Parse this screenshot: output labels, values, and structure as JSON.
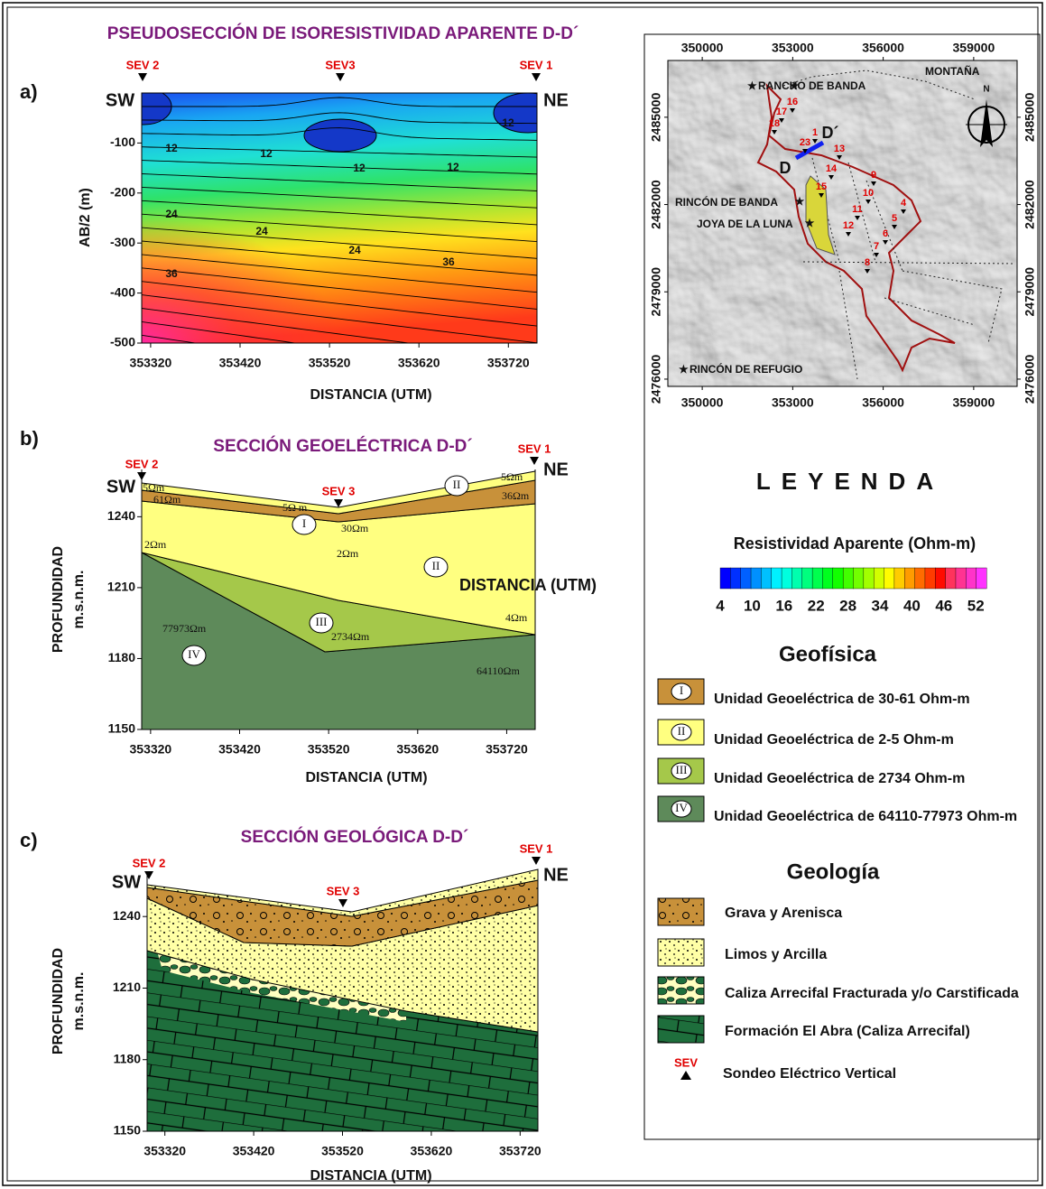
{
  "panel_a": {
    "label": "a)",
    "title": "PSEUDOSECCIÓN DE ISORESISTIVIDAD APARENTE D-D´",
    "sev": [
      "SEV 2",
      "SEV3",
      "SEV 1"
    ],
    "sw": "SW",
    "ne": "NE",
    "y_label": "AB/2 (m)",
    "x_label": "DISTANCIA (UTM)",
    "xlim": [
      353310,
      353752
    ],
    "xticks": [
      353320,
      353420,
      353520,
      353620,
      353720
    ],
    "ylim": [
      -500,
      0
    ],
    "yticks": [
      -100,
      -200,
      -300,
      -400,
      -500
    ],
    "contour_labels": [
      "12",
      "12",
      "12",
      "12",
      "12",
      "24",
      "24",
      "24",
      "36",
      "36"
    ]
  },
  "panel_b": {
    "label": "b)",
    "title": "SECCIÓN GEOELÉCTRICA D-D´",
    "sev": [
      "SEV 2",
      "SEV 3",
      "SEV 1"
    ],
    "sw": "SW",
    "ne": "NE",
    "y_label": "PROFUNDIDAD",
    "y_unit": "m.s.n.m.",
    "x_label": "DISTANCIA (UTM)",
    "overlay_text": "DISTANCIA (UTM)",
    "xlim": [
      353310,
      353752
    ],
    "xticks": [
      353320,
      353420,
      353520,
      353620,
      353720
    ],
    "ylim": [
      1150,
      1260
    ],
    "yticks": [
      1240,
      1210,
      1180,
      1150
    ],
    "resistivities": [
      "5Ωm",
      "61Ωm",
      "5Ω m",
      "30Ωm",
      "2Ωm",
      "2Ωm",
      "5Ωm",
      "36Ωm",
      "4Ωm",
      "77973Ωm",
      "2734Ωm",
      "64110Ωm"
    ],
    "units": [
      "I",
      "II",
      "II",
      "III",
      "IV"
    ]
  },
  "panel_c": {
    "label": "c)",
    "title": "SECCIÓN GEOLÓGICA D-D´",
    "sev": [
      "SEV 2",
      "SEV 3",
      "SEV 1"
    ],
    "sw": "SW",
    "ne": "NE",
    "y_label": "PROFUNDIDAD",
    "y_unit": "m.s.n.m.",
    "x_label": "DISTANCIA (UTM)",
    "xlim": [
      353300,
      353740
    ],
    "xticks": [
      353320,
      353420,
      353520,
      353620,
      353720
    ],
    "ylim": [
      1150,
      1259
    ],
    "yticks": [
      1240,
      1210,
      1180,
      1150
    ]
  },
  "map": {
    "xlim": [
      348860,
      360440
    ],
    "xticks": [
      350000,
      353000,
      356000,
      359000
    ],
    "ylim": [
      2475750,
      2486950
    ],
    "yticks": [
      2485000,
      2482000,
      2479000,
      2476000
    ],
    "places": [
      "RANCHO DE BANDA",
      "MONTAÑA",
      "RINCÓN DE BANDA",
      "JOYA DE LA LUNA",
      "RINCÓN DE REFUGIO"
    ],
    "section": [
      "D",
      "D´"
    ],
    "north": "N",
    "sev_numbers": [
      "16",
      "17",
      "18",
      "23",
      "1",
      "13",
      "14",
      "9",
      "15",
      "10",
      "4",
      "11",
      "5",
      "12",
      "6",
      "7",
      "8"
    ]
  },
  "legend": {
    "title": "LEYENDA",
    "colorbar_title": "Resistividad Aparente (Ohm-m)",
    "colorbar_lim": [
      4,
      54
    ],
    "colorbar_ticks": [
      4,
      10,
      16,
      22,
      28,
      34,
      40,
      46,
      52
    ],
    "geofisica_title": "Geofísica",
    "geofisica": [
      {
        "unit": "I",
        "text": "Unidad Geoeléctrica de 30-61 Ohm-m"
      },
      {
        "unit": "II",
        "text": "Unidad Geoeléctrica de 2-5 Ohm-m"
      },
      {
        "unit": "III",
        "text": "Unidad Geoeléctrica de 2734 Ohm-m"
      },
      {
        "unit": "IV",
        "text": "Unidad Geoeléctrica de 64110-77973 Ohm-m"
      }
    ],
    "geologia_title": "Geología",
    "geologia": [
      "Grava y Arenisca",
      "Limos y Arcilla",
      "Caliza Arrecifal Fracturada y/o Carstificada",
      "Formación El Abra (Caliza Arrecifal)"
    ],
    "sev_symbol": "SEV",
    "sev_text": "Sondeo Eléctrico Vertical"
  }
}
